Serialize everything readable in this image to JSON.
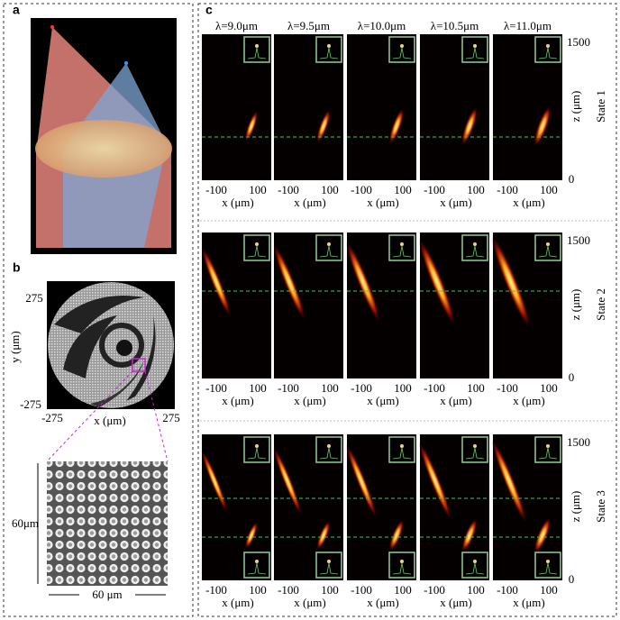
{
  "panel_a": {
    "label": "a"
  },
  "panel_b": {
    "label": "b",
    "y_ticks": [
      "275",
      "-275"
    ],
    "x_ticks": [
      "-275",
      "275"
    ],
    "y_label": "y (μm)",
    "x_label": "x (μm)",
    "zoom_height": "60μm",
    "zoom_width": "60 μm"
  },
  "panel_c": {
    "label": "c",
    "wavelengths": [
      "λ=9.0μm",
      "λ=9.5μm",
      "λ=10.0μm",
      "λ=10.5μm",
      "λ=11.0μm"
    ],
    "states": [
      "State 1",
      "State 2",
      "State 3"
    ],
    "x_ticks": [
      "-100",
      "100"
    ],
    "x_label": "x (μm)",
    "z_ticks": [
      "1500",
      "0"
    ],
    "z_label": "z (μm)"
  }
}
